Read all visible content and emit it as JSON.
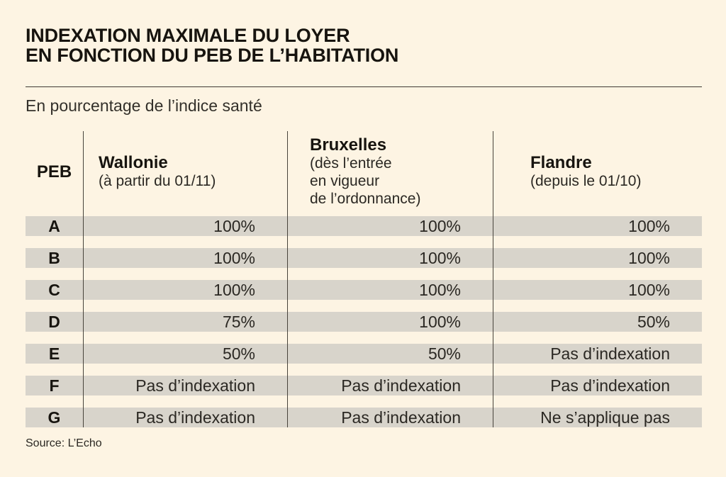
{
  "title": {
    "line1": "INDEXATION MAXIMALE DU LOYER",
    "line2": "EN FONCTION DU PEB DE L’HABITATION"
  },
  "subtitle": "En pourcentage de l’indice santé",
  "source": "Source: L’Echo",
  "colors": {
    "background": "#fdf4e3",
    "row_stripe": "#d8d4cb",
    "text": "#17140f",
    "divider": "#48433b"
  },
  "table": {
    "columns": [
      {
        "label": "PEB",
        "sublabel": ""
      },
      {
        "label": "Wallonie",
        "sublabel": "(à partir du 01/11)"
      },
      {
        "label": "Bruxelles",
        "sublabel": "(dès l’entrée\nen vigueur\nde l’ordonnance)"
      },
      {
        "label": "Flandre",
        "sublabel": "(depuis le 01/10)"
      }
    ],
    "rows": [
      {
        "peb": "A",
        "cells": [
          "100%",
          "100%",
          "100%"
        ]
      },
      {
        "peb": "B",
        "cells": [
          "100%",
          "100%",
          "100%"
        ]
      },
      {
        "peb": "C",
        "cells": [
          "100%",
          "100%",
          "100%"
        ]
      },
      {
        "peb": "D",
        "cells": [
          "75%",
          "100%",
          "50%"
        ]
      },
      {
        "peb": "E",
        "cells": [
          "50%",
          "50%",
          "Pas d’indexation"
        ]
      },
      {
        "peb": "F",
        "cells": [
          "Pas d’indexation",
          "Pas d’indexation",
          "Pas d’indexation"
        ]
      },
      {
        "peb": "G",
        "cells": [
          "Pas d’indexation",
          "Pas d’indexation",
          "Ne s’applique pas"
        ]
      }
    ]
  },
  "chart_data": {
    "type": "table",
    "title": "INDEXATION MAXIMALE DU LOYER EN FONCTION DU PEB DE L’HABITATION",
    "subtitle": "En pourcentage de l’indice santé",
    "columns": [
      "PEB",
      "Wallonie (à partir du 01/11)",
      "Bruxelles (dès l’entrée en vigueur de l’ordonnance)",
      "Flandre (depuis le 01/10)"
    ],
    "rows": [
      [
        "A",
        "100%",
        "100%",
        "100%"
      ],
      [
        "B",
        "100%",
        "100%",
        "100%"
      ],
      [
        "C",
        "100%",
        "100%",
        "100%"
      ],
      [
        "D",
        "75%",
        "100%",
        "50%"
      ],
      [
        "E",
        "50%",
        "50%",
        "Pas d’indexation"
      ],
      [
        "F",
        "Pas d’indexation",
        "Pas d’indexation",
        "Pas d’indexation"
      ],
      [
        "G",
        "Pas d’indexation",
        "Pas d’indexation",
        "Ne s’applique pas"
      ]
    ],
    "source": "Source: L’Echo"
  }
}
